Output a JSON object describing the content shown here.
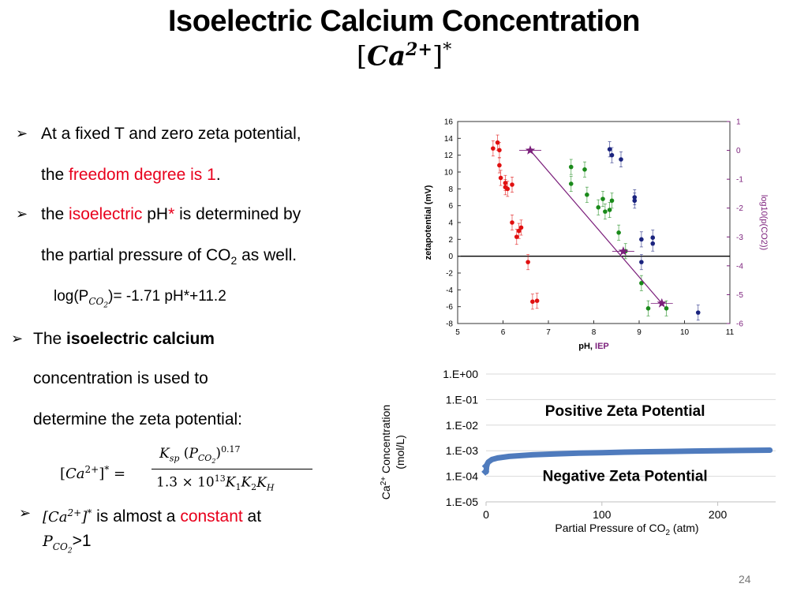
{
  "slide": {
    "title": "Isoelectric Calcium Concentration",
    "title_formula": "[Ca2+]*",
    "bullets": [
      {
        "pre": "At a fixed T and zero zeta potential,",
        "line2_pre": "the ",
        "line2_red": "freedom degree is 1",
        "line2_post": "."
      },
      {
        "pre": "the ",
        "red": "isoelectric",
        "mid": " pH",
        "star": "*",
        "post": " is determined by",
        "line2": "the partial pressure of CO",
        "line2_sub": "2",
        "line2_post": " as well."
      },
      {
        "eq": "log(P",
        "eq_sub": "CO2",
        "eq_post": ")= -1.71 pH*+11.2"
      },
      {
        "pre": "The ",
        "bold": "isoelectric calcium",
        "line2": "concentration is used to",
        "line3": "determine the zeta potential:"
      },
      {
        "formula_lhs": "[Ca2+]* =",
        "formula_num": "Ksp (PCO2)0.17",
        "formula_den": "1.3 × 1013 K1K2KH"
      },
      {
        "pre": "[Ca2+]*",
        "mid": " is almost a ",
        "red": "constant",
        "post": " at",
        "line2": "PCO2>1"
      }
    ],
    "page_number": "24"
  },
  "chart_data": [
    {
      "type": "scatter",
      "xlabel": "pH, IEP",
      "xlabel_parts": [
        "pH, ",
        "IEP"
      ],
      "ylabel": "zetapotential (mV)",
      "y2label": "log10(p(CO2))",
      "xlim": [
        5,
        11
      ],
      "ylim": [
        -8,
        16
      ],
      "y2lim": [
        -6,
        1
      ],
      "xticks": [
        "5",
        "6",
        "7",
        "8",
        "9",
        "10",
        "11"
      ],
      "yticks": [
        "-8",
        "-6",
        "-4",
        "-2",
        "0",
        "2",
        "4",
        "6",
        "8",
        "10",
        "12",
        "14",
        "16"
      ],
      "y2ticks": [
        "-6",
        "-5",
        "-4",
        "-3",
        "-2",
        "-1",
        "0",
        "1"
      ],
      "colors": {
        "red": "#e01010",
        "green": "#1a8a1a",
        "blue": "#1a237e",
        "purple": "#7b1f7b"
      },
      "series": [
        {
          "color": "red",
          "points": [
            [
              5.78,
              12.8
            ],
            [
              5.88,
              13.5
            ],
            [
              5.92,
              12.6
            ],
            [
              5.92,
              10.8
            ],
            [
              5.95,
              9.3
            ],
            [
              6.05,
              8.7
            ],
            [
              6.05,
              8.2
            ],
            [
              6.1,
              8.0
            ],
            [
              6.2,
              8.5
            ],
            [
              6.2,
              4.0
            ],
            [
              6.3,
              2.3
            ],
            [
              6.35,
              3.0
            ],
            [
              6.4,
              3.4
            ],
            [
              6.55,
              -0.7
            ],
            [
              6.65,
              -5.4
            ],
            [
              6.75,
              -5.3
            ]
          ]
        },
        {
          "color": "green",
          "points": [
            [
              7.5,
              10.6
            ],
            [
              7.5,
              8.6
            ],
            [
              7.8,
              10.3
            ],
            [
              7.85,
              7.3
            ],
            [
              8.1,
              5.8
            ],
            [
              8.2,
              6.8
            ],
            [
              8.25,
              5.3
            ],
            [
              8.35,
              5.5
            ],
            [
              8.4,
              6.6
            ],
            [
              8.55,
              2.8
            ],
            [
              8.7,
              0.6
            ],
            [
              9.05,
              -3.2
            ],
            [
              9.2,
              -6.2
            ],
            [
              9.6,
              -6.2
            ]
          ]
        },
        {
          "color": "blue",
          "points": [
            [
              8.35,
              12.7
            ],
            [
              8.4,
              12.0
            ],
            [
              8.6,
              11.5
            ],
            [
              8.9,
              7.0
            ],
            [
              8.9,
              6.6
            ],
            [
              9.05,
              2.0
            ],
            [
              9.05,
              -0.7
            ],
            [
              9.3,
              2.2
            ],
            [
              9.3,
              1.5
            ],
            [
              10.3,
              -6.7
            ]
          ]
        }
      ],
      "iep_line": {
        "x": [
          6.6,
          9.5
        ],
        "y2": [
          0,
          -5.3
        ]
      },
      "iep_stars": [
        [
          6.6,
          0
        ],
        [
          8.65,
          -3.5
        ],
        [
          9.5,
          -5.3
        ]
      ]
    },
    {
      "type": "line",
      "xlabel": "Partial Pressure of CO2 (atm)",
      "ylabel": "Ca2+ Concentration (mol/L)",
      "xlim": [
        0,
        250
      ],
      "ylim_log": [
        -5,
        0
      ],
      "xticks": [
        "0",
        "100",
        "200"
      ],
      "yticks": [
        "1.E+00",
        "1.E-01",
        "1.E-02",
        "1.E-03",
        "1.E-04",
        "1.E-05"
      ],
      "annotations": [
        "Positive Zeta Potential",
        "Negative Zeta Potential"
      ],
      "series": [
        {
          "color": "#4f7bbd",
          "x": [
            0.1,
            0.5,
            1,
            2,
            5,
            10,
            20,
            40,
            60,
            80,
            100,
            120,
            140,
            160,
            180,
            200,
            220,
            245
          ],
          "y": [
            0.00015,
            0.00025,
            0.0003,
            0.00036,
            0.00045,
            0.00052,
            0.0006,
            0.00069,
            0.00075,
            0.0008,
            0.00084,
            0.00088,
            0.00091,
            0.00094,
            0.00097,
            0.001,
            0.00102,
            0.00105
          ]
        }
      ]
    }
  ]
}
